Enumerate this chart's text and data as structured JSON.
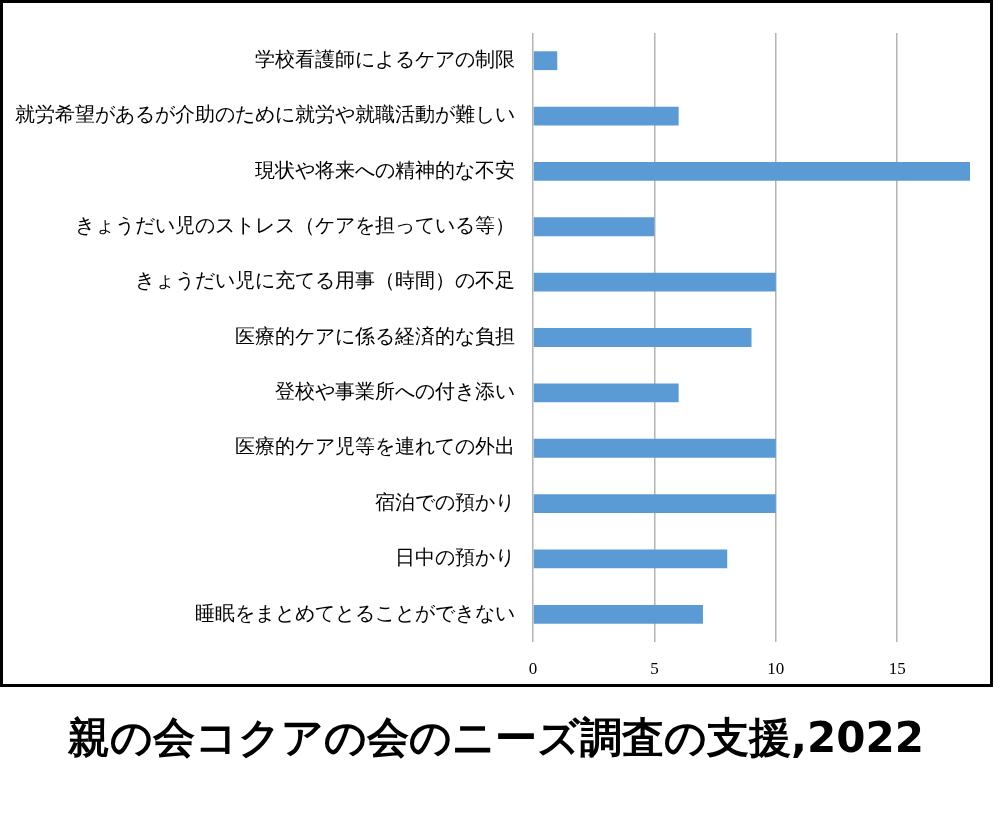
{
  "chart_data": {
    "type": "bar",
    "orientation": "horizontal",
    "title": "親の会コクアの会のニーズ調査の支援,2022",
    "categories": [
      "学校看護師によるケアの制限",
      "就労希望があるが介助のために就労や就職活動が難しい",
      "現状や将来への精神的な不安",
      "きょうだい児のストレス（ケアを担っている等）",
      "きょうだい児に充てる用事（時間）の不足",
      "医療的ケアに係る経済的な負担",
      "登校や事業所への付き添い",
      "医療的ケア児等を連れての外出",
      "宿泊での預かり",
      "日中の預かり",
      "睡眠をまとめてとることができない"
    ],
    "values": [
      1,
      6,
      18,
      5,
      10,
      9,
      6,
      10,
      10,
      8,
      7
    ],
    "color": "#5b9bd5",
    "xlim": [
      0,
      18
    ],
    "xticks": [
      0,
      5,
      10,
      15
    ],
    "grid": "x"
  }
}
